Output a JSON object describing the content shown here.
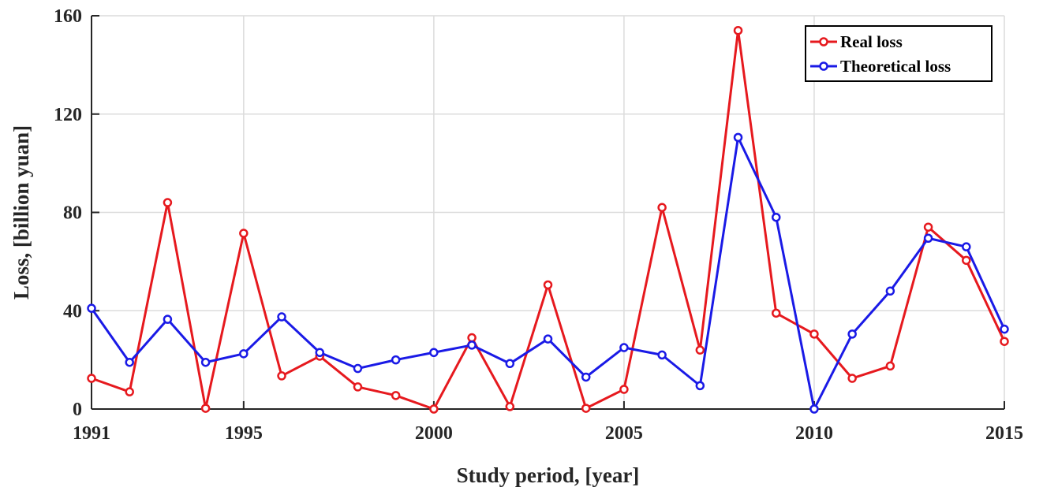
{
  "chart_data": {
    "type": "line",
    "title": "",
    "xlabel": "Study period, [year]",
    "ylabel": "Loss, [billion yuan]",
    "xlim": [
      1991,
      2015
    ],
    "ylim": [
      0,
      160
    ],
    "xticks": [
      1991,
      1995,
      2000,
      2005,
      2010,
      2015
    ],
    "yticks": [
      0,
      40,
      80,
      120,
      160
    ],
    "grid": true,
    "legend_position": "top-right",
    "x": [
      1991,
      1992,
      1993,
      1994,
      1995,
      1996,
      1997,
      1998,
      1999,
      2000,
      2001,
      2002,
      2003,
      2004,
      2005,
      2006,
      2007,
      2008,
      2009,
      2010,
      2011,
      2012,
      2013,
      2014,
      2015
    ],
    "series": [
      {
        "name": "Real loss",
        "color": "#e6191e",
        "values": [
          12.5,
          7,
          84,
          0.3,
          71.5,
          13.5,
          21.5,
          9,
          5.5,
          0,
          29,
          1,
          50.5,
          0.3,
          8,
          82,
          24,
          154,
          39,
          30.5,
          12.5,
          17.5,
          74,
          60.5,
          27.5
        ]
      },
      {
        "name": "Theoretical loss",
        "color": "#1a1ae6",
        "values": [
          41,
          19,
          36.5,
          19,
          22.5,
          37.5,
          23,
          16.5,
          20,
          23,
          26,
          18.5,
          28.5,
          13,
          25,
          22,
          9.5,
          110.5,
          78,
          0,
          30.5,
          48,
          69.5,
          66,
          32.5
        ]
      }
    ]
  }
}
